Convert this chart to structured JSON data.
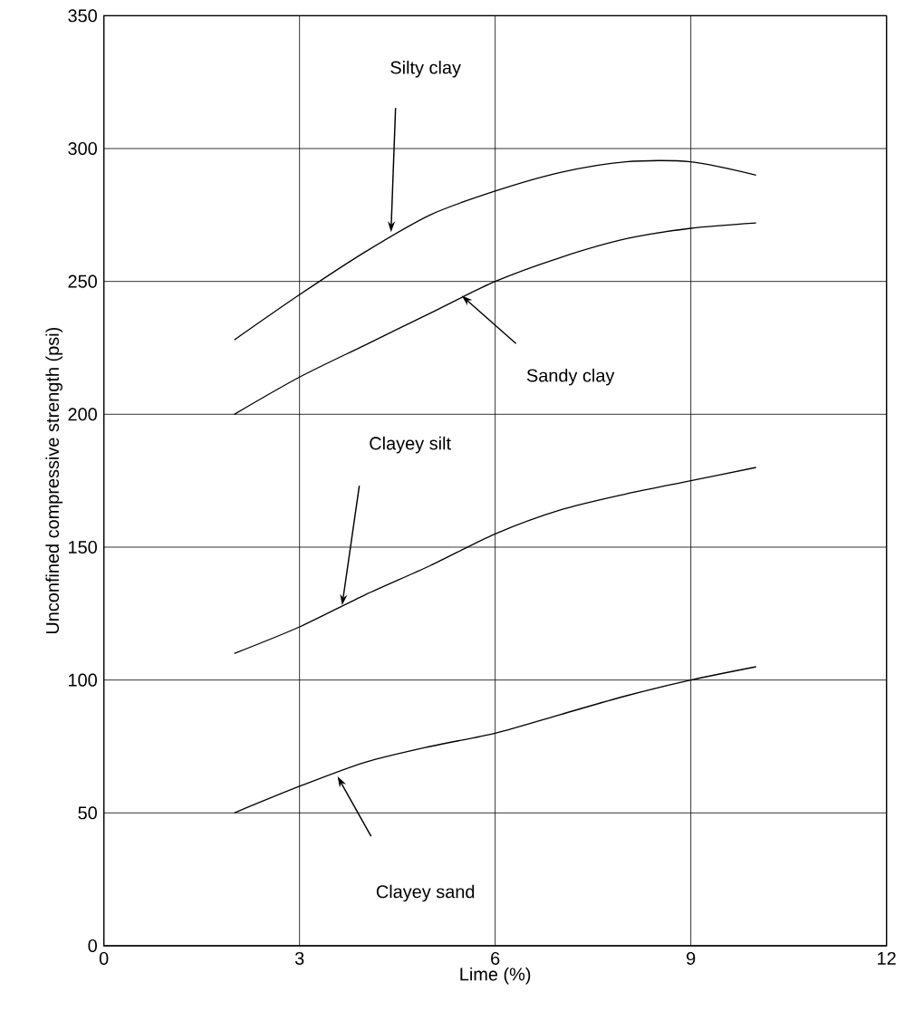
{
  "chart_data": {
    "type": "line",
    "xlabel": "Lime (%)",
    "ylabel": "Unconfined compressive strength (psi)",
    "x": [
      2,
      3,
      4,
      5,
      6,
      7,
      8,
      9,
      10
    ],
    "series": [
      {
        "color": "#000000",
        "values": [
          228,
          245,
          261,
          275,
          284,
          291,
          295,
          295,
          290
        ]
      },
      {
        "color": "#000000",
        "values": [
          200,
          214,
          226,
          238,
          250,
          259,
          266,
          270,
          272
        ]
      },
      {
        "color": "#000000",
        "values": [
          110,
          120,
          132,
          143,
          155,
          164,
          170,
          175,
          180
        ]
      },
      {
        "color": "#000000",
        "values": [
          50,
          60,
          69,
          75,
          80,
          87,
          94,
          100,
          105
        ]
      }
    ],
    "annotations": [
      "Silty clay",
      "Sandy clay",
      "Clayey silt",
      "Clayey sand"
    ],
    "xlim": [
      0,
      12
    ],
    "ylim": [
      0,
      350
    ],
    "xticks": [
      0,
      3,
      6,
      9,
      12
    ],
    "yticks": [
      0,
      50,
      100,
      150,
      200,
      250,
      300,
      350
    ],
    "grid": true,
    "marker": "none",
    "line_style": "solid"
  }
}
